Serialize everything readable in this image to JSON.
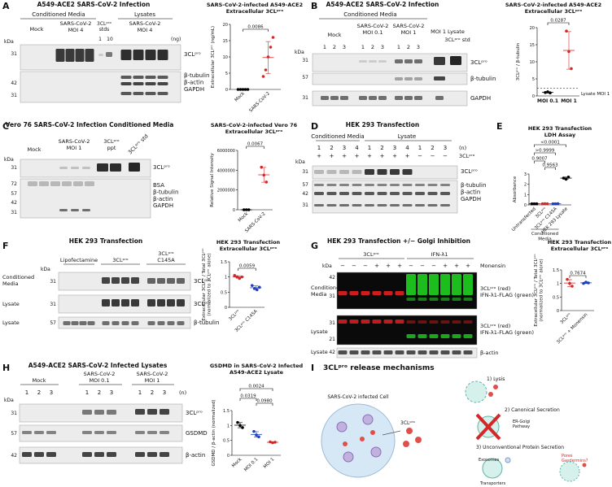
{
  "panels": {
    "A": {
      "letter": "A",
      "title": "A549-ACE2 SARS-CoV-2 Infection",
      "groups": [
        "Conditioned Media",
        "Lysates"
      ],
      "columns": [
        "Mock",
        "SARS-CoV-2\nMOI 4",
        "3CLᵖʳᵒ\nstds",
        "SARS-CoV-2\nMOI 4"
      ],
      "std_lanes": [
        "1",
        "10"
      ],
      "unit": "(ng)",
      "kda_label": "kDa",
      "kda": [
        31,
        42,
        31
      ],
      "bands": [
        "3CLᵖʳᵒ",
        "β-tubulin\nβ-actin\nGAPDH"
      ]
    },
    "B": {
      "letter": "B",
      "title": "A549-ACE2 SARS-CoV-2 Infection",
      "groups": [
        "Conditioned Media"
      ],
      "columns": [
        "Mock",
        "SARS-CoV-2\nMOI 0.1",
        "SARS-CoV-2\nMOI 1",
        "MOI 1 Lysate",
        "3CLᵖʳᵒ std"
      ],
      "lanes": [
        "1",
        "2",
        "3",
        "1",
        "2",
        "3",
        "1",
        "2",
        "3"
      ],
      "kda_label": "kDa",
      "kda": [
        31,
        57,
        31
      ],
      "bands": [
        "3CLᵖʳᵒ",
        "β-tubulin",
        "GAPDH"
      ]
    },
    "C": {
      "letter": "C",
      "title": "Vero 76 SARS-CoV-2 Infection Conditioned Media",
      "columns": [
        "Mock",
        "SARS-CoV-2\nMOI 1",
        "3CLᵖʳᵒ\nppt",
        "3CLᵖʳᵒ std"
      ],
      "kda_label": "kDa",
      "kda": [
        31,
        72,
        57,
        42,
        31
      ],
      "bands": [
        "3CLᵖʳᵒ",
        "BSA\nβ-tubulin\nβ-actin\nGAPDH"
      ]
    },
    "D": {
      "letter": "D",
      "title": "HEK 293 Transfection",
      "groups": [
        "Conditioned Media",
        "Lysate"
      ],
      "lanes": [
        "1",
        "2",
        "3",
        "4",
        "1",
        "2",
        "3",
        "4",
        "1",
        "2",
        "3"
      ],
      "n_label": "(n)",
      "signs": [
        "+",
        "+",
        "+",
        "+",
        "+",
        "+",
        "+",
        "+",
        "−",
        "−",
        "−"
      ],
      "sign_label": "3CLᵖʳᵒ",
      "kda_label": "kDa",
      "kda": [
        31,
        57,
        42,
        31
      ],
      "bands": [
        "3CLᵖʳᵒ",
        "β-tubulin\nβ-actin\nGAPDH"
      ]
    },
    "E": {
      "letter": "E"
    },
    "F": {
      "letter": "F",
      "title": "HEK 293 Transfection",
      "columns": [
        "Lipofectamine",
        "3CLᵖʳᵒ",
        "3CLᵖʳᵒ\nC145A"
      ],
      "kda_label": "kDa",
      "rows": [
        "Conditioned\nMedia",
        "Lysate",
        "Lysate"
      ],
      "kda": [
        31,
        31,
        57
      ],
      "bands": [
        "3CLᵖʳᵒ",
        "3CLᵖʳᵒ",
        "β-tubulin"
      ]
    },
    "G": {
      "letter": "G",
      "title": "HEK 293 Transfection +/− Golgi Inhibition",
      "columns": [
        "3CLᵖʳᵒ",
        "IFN-λ1"
      ],
      "signs": [
        "−",
        "−",
        "−",
        "+",
        "+",
        "+",
        "−",
        "−",
        "−",
        "+",
        "+",
        "+"
      ],
      "sign_label": "Monensin",
      "kda_label": "kDa",
      "rows": [
        "Conditioned\nMedia",
        "Lysate",
        "Lysate"
      ],
      "kda": [
        42,
        31,
        31,
        21,
        42
      ],
      "bands": [
        "3CLᵖʳᵒ (red)\nIFN-λ1-FLAG (green)",
        "3CLᵖʳᵒ (red)\nIFN-λ1-FLAG (green)",
        "β-actin"
      ]
    },
    "H": {
      "letter": "H",
      "title": "A549-ACE2 SARS-CoV-2 Infected Lysates",
      "columns": [
        "Mock",
        "SARS-CoV-2\nMOI 0.1",
        "SARS-CoV-2\nMOI 1"
      ],
      "lanes": [
        "1",
        "2",
        "3",
        "1",
        "2",
        "3",
        "1",
        "2",
        "3"
      ],
      "n_label": "(n)",
      "kda_label": "kDa",
      "kda": [
        31,
        57,
        42
      ],
      "bands": [
        "3CLᵖʳᵒ",
        "GSDMD",
        "β-actin"
      ]
    },
    "I": {
      "letter": "I",
      "title": "3CLᵖʳᵒ release mechanisms",
      "cell": "SARS-CoV-2 infected Cell",
      "protein": "3CLᵖʳᵒ",
      "steps": [
        "1) Lysis",
        "2) Canonical Secretion",
        "3) Unconventional Protein Secretion"
      ],
      "pathway": "ER-Golgi\nPathway",
      "routes": [
        "Exosomes",
        "Pores\nGasdermins?",
        "Transporters"
      ]
    }
  },
  "chart_data": [
    {
      "type": "dot",
      "title": "SARS-CoV-2-infected A549-ACE2\nExtracellular 3CLᵖʳᵒ",
      "y_label": "Extracellular 3CLᵖʳᵒ (ng/mL)",
      "categories": [
        "Mock",
        "SARS-CoV-2"
      ],
      "values": [
        [
          0,
          0,
          0,
          0,
          0
        ],
        [
          4,
          6,
          10,
          13,
          16
        ]
      ],
      "colors": [
        "#000000",
        "#d62728"
      ],
      "ylim": [
        0,
        20
      ],
      "yticks": [
        0,
        5,
        10,
        15,
        20
      ],
      "annotations": [
        "0.0086"
      ]
    },
    {
      "type": "dot",
      "title": "SARS-CoV-2-infected A549-ACE2\nExtracellular 3CLᵖʳᵒ",
      "y_label": "3CLᵖʳᵒ / β-tubulin",
      "categories": [
        "MOI 0.1",
        "MOI 1"
      ],
      "values": [
        [
          1,
          1.2,
          0.9
        ],
        [
          19,
          13,
          8
        ]
      ],
      "colors": [
        "#000000",
        "#d62728"
      ],
      "ylim": [
        0,
        20
      ],
      "yticks": [
        0,
        5,
        10,
        15,
        20
      ],
      "annotations": [
        "0.0287"
      ],
      "reference": {
        "label": "Lysate MOI 1",
        "value": 2.2
      }
    },
    {
      "type": "dot",
      "title": "SARS-CoV-2-infected Vero 76\nExtracellular 3CLᵖʳᵒ",
      "y_label": "Relative Signal Intensity",
      "categories": [
        "Mock",
        "SARS-CoV-2"
      ],
      "values": [
        [
          0,
          0,
          0
        ],
        [
          4300000,
          3500000,
          2800000
        ]
      ],
      "colors": [
        "#000000",
        "#d62728"
      ],
      "ylim": [
        0,
        6000000
      ],
      "yticks": [
        0,
        2000000,
        4000000,
        6000000
      ],
      "annotations": [
        "0.0067"
      ]
    },
    {
      "type": "dot",
      "title": "HEK 293 Transfection\nLDH Assay",
      "y_label": "Absorbance",
      "categories": [
        "Untransfected",
        "3CLᵖʳᵒ",
        "3CLᵖʳᵒ C145A",
        "HEK 293 Lysate"
      ],
      "values": [
        [
          0.1,
          0.1,
          0.1
        ],
        [
          0.1,
          0.11,
          0.1
        ],
        [
          0.1,
          0.1,
          0.11
        ],
        [
          2.6,
          2.5,
          2.7
        ]
      ],
      "colors": [
        "#000000",
        "#d62728",
        "#1f3fbf",
        "#000000"
      ],
      "ylim": [
        0,
        3
      ],
      "yticks": [
        0,
        1,
        2,
        3
      ],
      "annotations": [
        "<0.0001",
        ">0.9999",
        "0.9007",
        "0.9563"
      ],
      "group_label": "Conditioned\nMedia"
    },
    {
      "type": "dot",
      "title": "HEK 293 Transfection\nExtracellular 3CLᵖʳᵒ",
      "y_label": "Extracellular 3CLᵖʳᵒ / Total 3CLᵖʳᵒ\n(normalized to 3CLᵖʳᵒ alone)",
      "categories": [
        "3CLᵖʳᵒ",
        "3CLᵖʳᵒ C145A"
      ],
      "values": [
        [
          1.05,
          1,
          0.95,
          1
        ],
        [
          0.72,
          0.62,
          0.58,
          0.66
        ]
      ],
      "colors": [
        "#d62728",
        "#1f3fbf"
      ],
      "ylim": [
        0,
        1.5
      ],
      "yticks": [
        0,
        0.5,
        1,
        1.5
      ],
      "annotations": [
        "0.0059"
      ]
    },
    {
      "type": "dot",
      "title": "HEK 293 Transfection\nExtracellular 3CLᵖʳᵒ",
      "y_label": "Extracellular 3CLᵖʳᵒ / Total 3CLᵖʳᵒ\n(normalized to 3CLᵖʳᵒ alone)",
      "categories": [
        "3CLᵖʳᵒ",
        "3CLᵖʳᵒ + Monensin"
      ],
      "values": [
        [
          1.15,
          1,
          0.9
        ],
        [
          1,
          1.05,
          1.02
        ]
      ],
      "colors": [
        "#d62728",
        "#1f3fbf"
      ],
      "ylim": [
        0,
        1.5
      ],
      "yticks": [
        0,
        0.5,
        1,
        1.5
      ],
      "annotations": [
        "0.7674"
      ]
    },
    {
      "type": "dot",
      "title": "GSDMD in SARS-CoV-2 Infected\nA549-ACE2 Lysate",
      "y_label": "GSDMD / β-actin (normalized)",
      "categories": [
        "Mock",
        "MOI 0.1",
        "MOI 1"
      ],
      "values": [
        [
          1.1,
          1,
          0.93
        ],
        [
          0.8,
          0.68,
          0.62
        ],
        [
          0.45,
          0.42,
          0.44
        ]
      ],
      "colors": [
        "#000000",
        "#1f3fbf",
        "#d62728"
      ],
      "ylim": [
        0,
        1.5
      ],
      "yticks": [
        0,
        0.5,
        1,
        1.5
      ],
      "annotations": [
        "0.0024",
        "0.0319",
        "0.0980"
      ]
    }
  ]
}
